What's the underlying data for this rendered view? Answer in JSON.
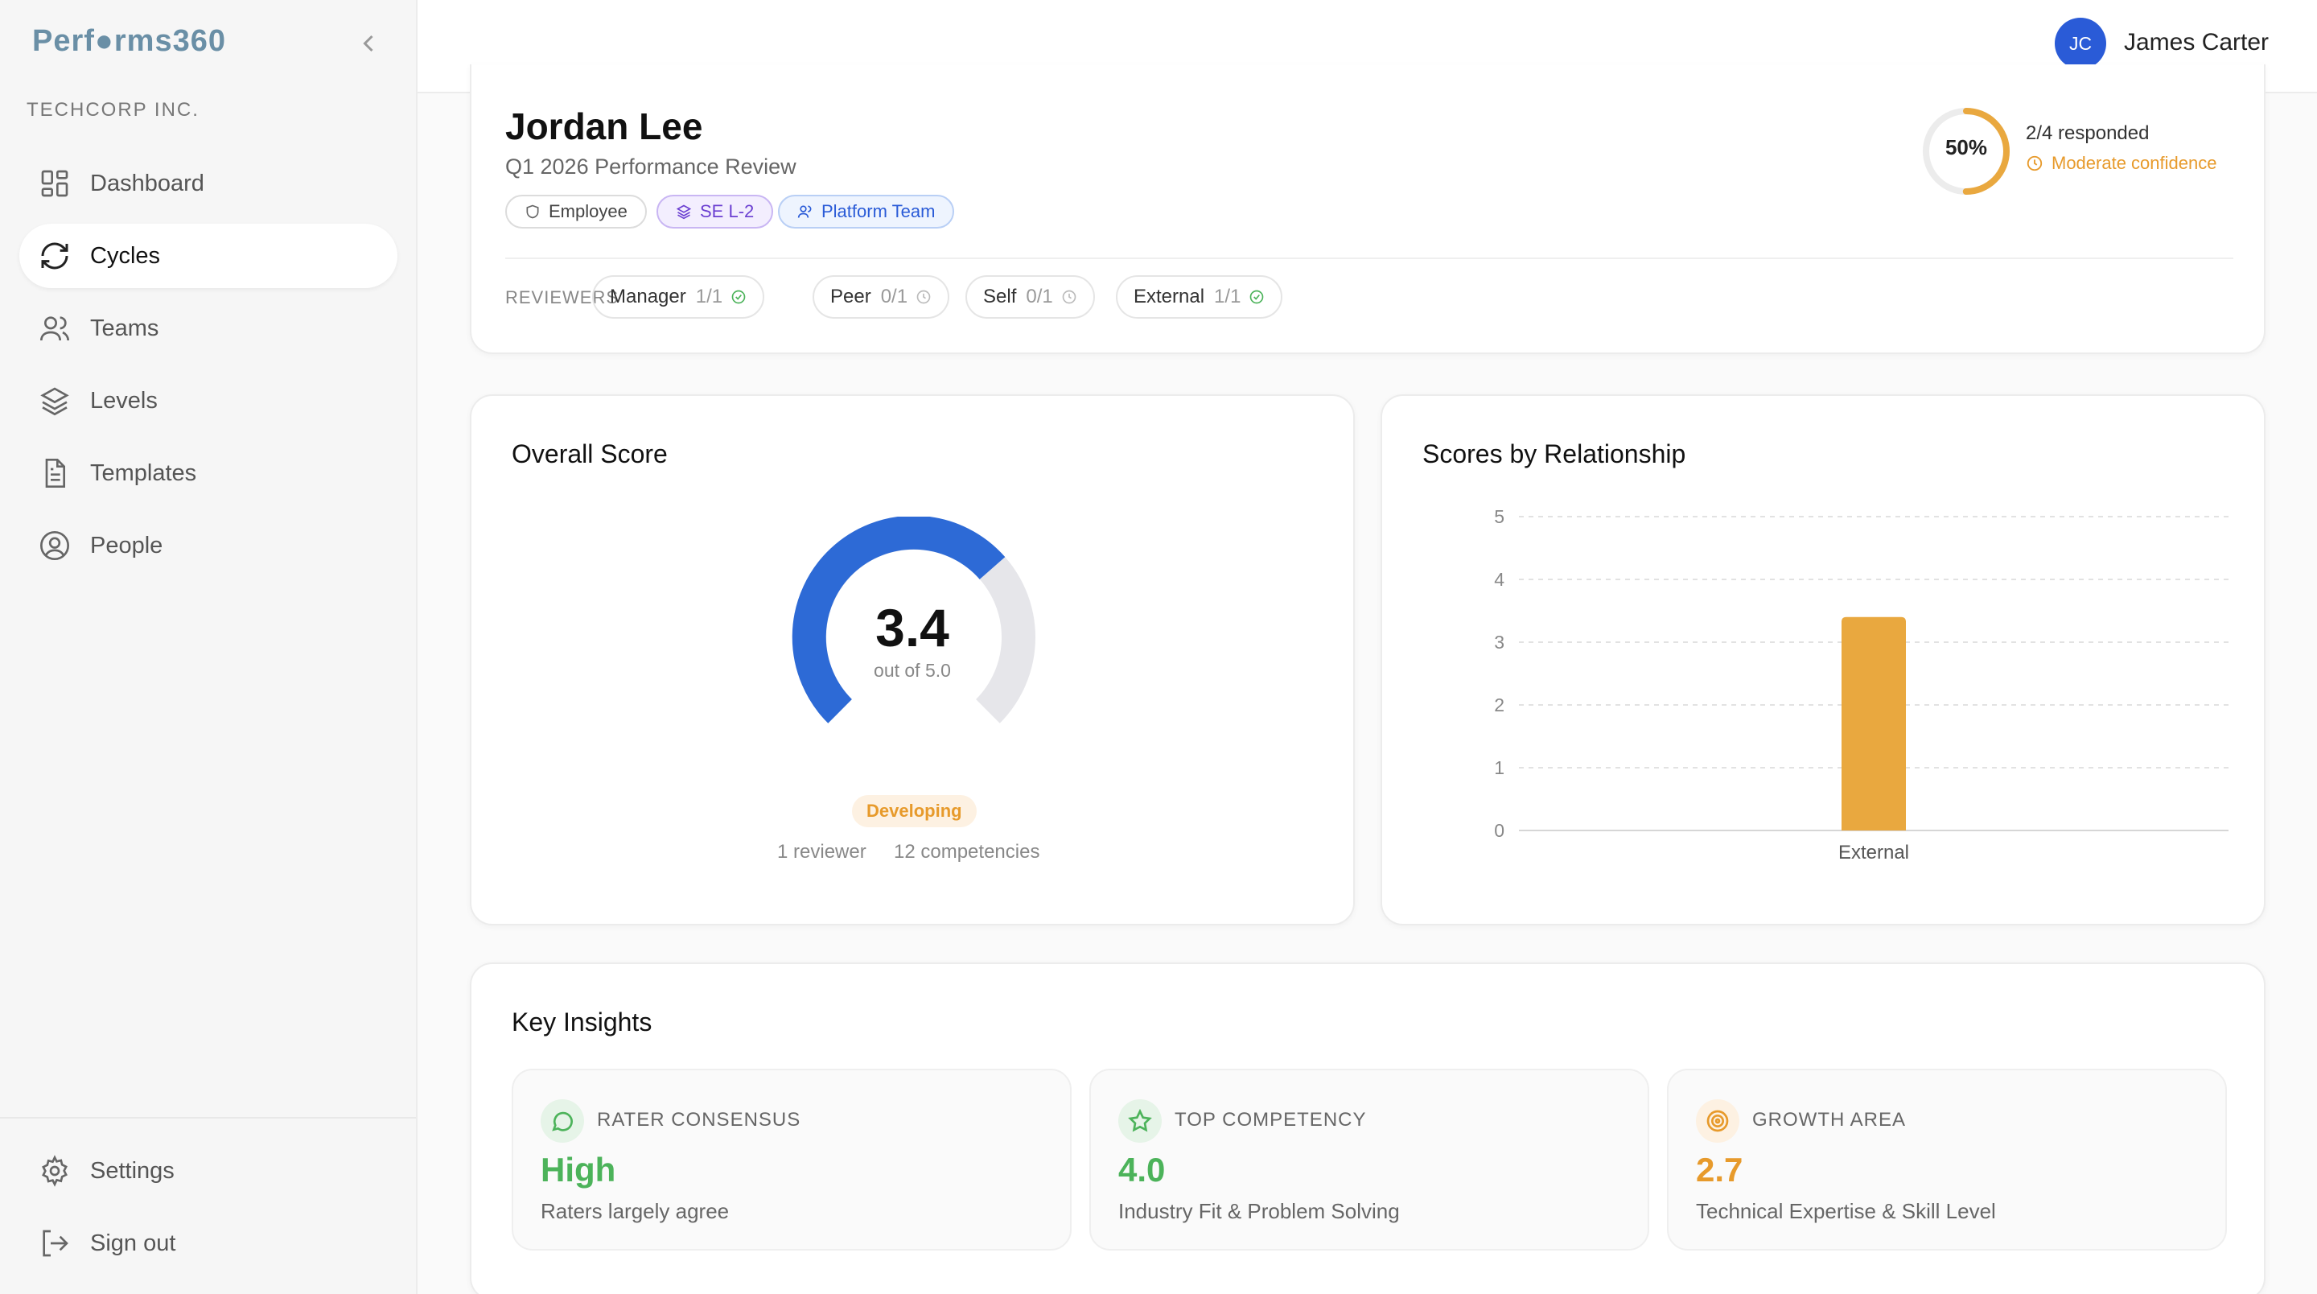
{
  "app": {
    "logo": "Perf●rms360",
    "org": "TECHCORP INC."
  },
  "nav": {
    "items": [
      {
        "label": "Dashboard",
        "icon": "dashboard-icon"
      },
      {
        "label": "Cycles",
        "icon": "refresh-icon",
        "active": true
      },
      {
        "label": "Teams",
        "icon": "users-icon"
      },
      {
        "label": "Levels",
        "icon": "layers-icon"
      },
      {
        "label": "Templates",
        "icon": "document-icon"
      },
      {
        "label": "People",
        "icon": "user-circle-icon"
      }
    ],
    "bottom": [
      {
        "label": "Settings",
        "icon": "gear-icon"
      },
      {
        "label": "Sign out",
        "icon": "sign-out-icon"
      }
    ]
  },
  "user": {
    "initials": "JC",
    "name": "James Carter"
  },
  "review": {
    "name": "Jordan Lee",
    "subtitle": "Q1 2026 Performance Review",
    "tags": {
      "role": "Employee",
      "level": "SE L-2",
      "team": "Platform Team"
    },
    "progress_percent": 50,
    "progress_label": "50%",
    "responded": "2/4 responded",
    "confidence": "Moderate confidence",
    "reviewers_label": "REVIEWERS",
    "reviewers": [
      {
        "label": "Manager",
        "count": "1/1",
        "status": "complete"
      },
      {
        "label": "Peer",
        "count": "0/1",
        "status": "pending"
      },
      {
        "label": "Self",
        "count": "0/1",
        "status": "pending"
      },
      {
        "label": "External",
        "count": "1/1",
        "status": "complete"
      }
    ]
  },
  "overall": {
    "title": "Overall Score",
    "score": "3.4",
    "score_value": 3.4,
    "max": 5.0,
    "out_of": "out of 5.0",
    "badge": "Developing",
    "reviewers": "1 reviewer",
    "competencies": "12 competencies"
  },
  "relationship": {
    "title": "Scores by Relationship"
  },
  "chart_data": {
    "type": "bar",
    "categories": [
      "External"
    ],
    "values": [
      3.4
    ],
    "ylim": [
      0,
      5
    ],
    "yticks": [
      0,
      1,
      2,
      3,
      4,
      5
    ],
    "grid": true,
    "color": "#e9a83f"
  },
  "insights": {
    "title": "Key Insights",
    "items": [
      {
        "label": "RATER CONSENSUS",
        "value": "High",
        "sub": "Raters largely agree",
        "color": "#4cb35a",
        "icon": "chat-icon"
      },
      {
        "label": "TOP COMPETENCY",
        "value": "4.0",
        "sub": "Industry Fit & Problem Solving",
        "color": "#4cb35a",
        "icon": "star-icon"
      },
      {
        "label": "GROWTH AREA",
        "value": "2.7",
        "sub": "Technical Expertise & Skill Level",
        "color": "#e79a2b",
        "icon": "target-icon"
      }
    ]
  }
}
